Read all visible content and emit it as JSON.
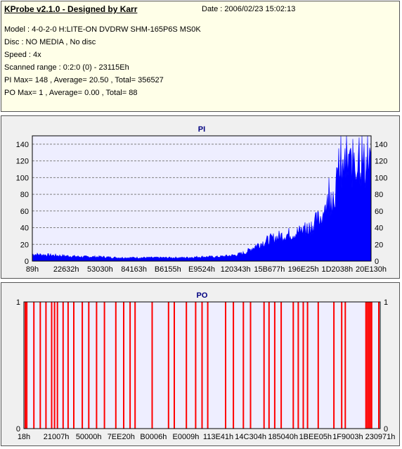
{
  "header": {
    "title": "KProbe v2.1.0 - Designed by Karr",
    "date": "Date : 2006/02/23 15:02:13",
    "lines": [
      "Model : 4-0-2-0 H:LITE-ON DVDRW SHM-165P6S MS0K",
      "Disc : NO MEDIA , No disc",
      "Speed : 4x",
      "Scanned range : 0:2:0 (0) - 23115Eh",
      "PI Max= 148 , Average= 20.50 , Total= 356527",
      "PO Max= 1 , Average= 0.00 , Total= 88"
    ]
  },
  "chart_data": [
    {
      "type": "area",
      "title": "PI",
      "ylim": [
        0,
        150
      ],
      "yticks": [
        0,
        20,
        40,
        60,
        80,
        100,
        120,
        140
      ],
      "xticks": [
        "89h",
        "22632h",
        "53030h",
        "84163h",
        "B6155h",
        "E9524h",
        "120343h",
        "15B677h",
        "196E25h",
        "1D2038h",
        "20E130h"
      ],
      "grid": true,
      "color": "#0000ff",
      "envelope": [
        [
          0,
          8
        ],
        [
          0.05,
          7
        ],
        [
          0.1,
          6
        ],
        [
          0.15,
          5
        ],
        [
          0.2,
          5
        ],
        [
          0.25,
          4
        ],
        [
          0.3,
          4
        ],
        [
          0.35,
          4
        ],
        [
          0.4,
          4
        ],
        [
          0.45,
          4
        ],
        [
          0.5,
          5
        ],
        [
          0.55,
          5
        ],
        [
          0.6,
          7
        ],
        [
          0.63,
          10
        ],
        [
          0.66,
          18
        ],
        [
          0.7,
          25
        ],
        [
          0.74,
          30
        ],
        [
          0.78,
          33
        ],
        [
          0.8,
          36
        ],
        [
          0.82,
          40
        ],
        [
          0.85,
          50
        ],
        [
          0.87,
          65
        ],
        [
          0.89,
          78
        ],
        [
          0.9,
          90
        ],
        [
          0.92,
          105
        ],
        [
          0.94,
          112
        ],
        [
          0.96,
          115
        ],
        [
          0.98,
          112
        ],
        [
          1.0,
          108
        ]
      ],
      "peaks": [
        [
          0.905,
          135
        ],
        [
          0.935,
          128
        ],
        [
          0.95,
          130
        ],
        [
          0.965,
          148
        ],
        [
          0.985,
          125
        ]
      ]
    },
    {
      "type": "bar",
      "title": "PO",
      "ylim": [
        0,
        1
      ],
      "yticks": [
        0,
        1
      ],
      "xticks": [
        "18h",
        "21007h",
        "50000h",
        "7EE20h",
        "B0006h",
        "E0009h",
        "113E41h",
        "14C304h",
        "185040h",
        "1BEE05h",
        "1F9003h",
        "230971h"
      ],
      "grid": true,
      "color": "#ff0000",
      "event_positions": [
        0.004,
        0.008,
        0.028,
        0.046,
        0.062,
        0.078,
        0.086,
        0.094,
        0.11,
        0.124,
        0.14,
        0.164,
        0.182,
        0.204,
        0.226,
        0.258,
        0.28,
        0.298,
        0.312,
        0.36,
        0.406,
        0.422,
        0.456,
        0.482,
        0.5,
        0.516,
        0.566,
        0.588,
        0.616,
        0.636,
        0.674,
        0.688,
        0.704,
        0.722,
        0.756,
        0.77,
        0.784,
        0.796,
        0.826,
        0.87,
        0.892,
        0.902,
        0.96,
        0.964,
        0.968,
        0.972,
        0.976,
        0.996
      ],
      "value": 1
    }
  ]
}
